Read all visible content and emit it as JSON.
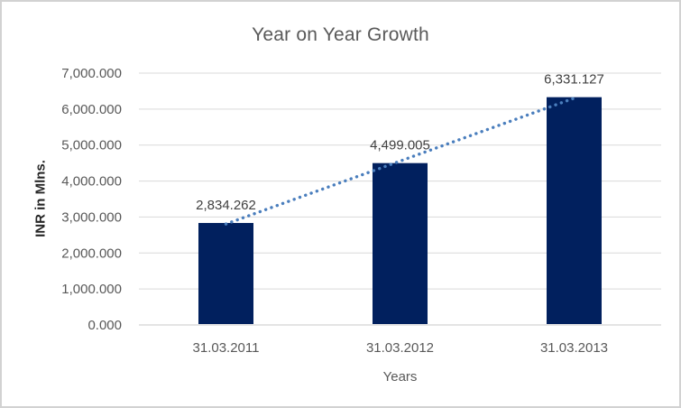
{
  "chart_data": {
    "type": "bar",
    "title": "Year on Year Growth",
    "categories": [
      "31.03.2011",
      "31.03.2012",
      "31.03.2013"
    ],
    "values": [
      2834.262,
      4499.005,
      6331.127
    ],
    "data_labels": [
      "2,834.262",
      "4,499.005",
      "6,331.127"
    ],
    "xlabel": "Years",
    "ylabel": "INR in Mlns.",
    "ylim": [
      0,
      7000
    ],
    "ytick_step": 1000,
    "ytick_labels": [
      "0.000",
      "1,000.000",
      "2,000.000",
      "3,000.000",
      "4,000.000",
      "5,000.000",
      "6,000.000",
      "7,000.000"
    ],
    "grid": true,
    "legend": false,
    "bar_color": "#01205E",
    "trendline": {
      "type": "linear",
      "style": "dotted",
      "color": "#4A7EBD"
    },
    "colors": {
      "title_text": "#595959",
      "axis_text": "#595959",
      "data_label_text": "#404040",
      "ylabel_text": "#262626",
      "gridline": "#D9D9D9",
      "axis_line": "#C9C9C9",
      "chart_border": "#D2D2D2",
      "background": "#FFFFFF"
    }
  }
}
